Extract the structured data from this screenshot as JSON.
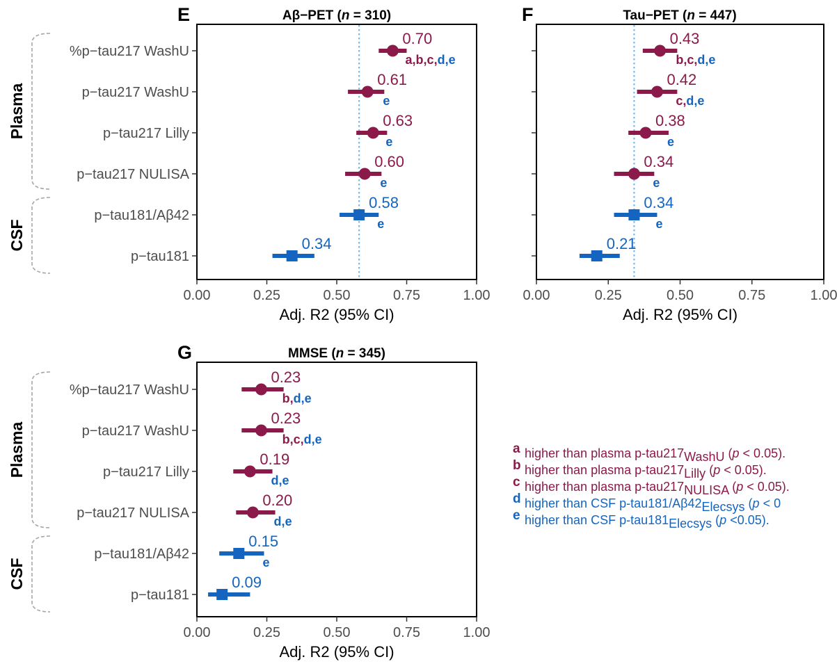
{
  "colors": {
    "plasma": "#8b1a4a",
    "csf": "#1565c0",
    "refline": "#7ab7e8",
    "bracket": "#a6a6a6"
  },
  "group_labels": [
    "Plasma",
    "CSF"
  ],
  "legend": [
    {
      "key": "a",
      "text": "higher than plasma p-tau217",
      "sub": "WashU",
      "p": "(p < 0.05).",
      "group": "plasma"
    },
    {
      "key": "b",
      "text": "higher than plasma p-tau217",
      "sub": "Lilly",
      "p": "(p < 0.05).",
      "group": "plasma"
    },
    {
      "key": "c",
      "text": "higher than plasma p-tau217",
      "sub": "NULISA",
      "p": "(p < 0.05).",
      "group": "plasma"
    },
    {
      "key": "d",
      "text": "higher than CSF p-tau181/Aβ42",
      "sub": "Elecsys",
      "p": "(p < 0",
      "group": "csf"
    },
    {
      "key": "e",
      "text": "higher than CSF p-tau181",
      "sub": "Elecsys",
      "p": "(p <0.05).",
      "group": "csf"
    }
  ],
  "chart_data": [
    {
      "type": "scatter",
      "panel": "E",
      "title": "Aβ−PET (n = 310)",
      "xlabel": "Adj. R2 (95% CI)",
      "xlim": [
        0,
        1
      ],
      "xticks": [
        "0.00",
        "0.25",
        "0.50",
        "0.75",
        "1.00"
      ],
      "ref_line": 0.58,
      "show_row_labels": true,
      "categories": [
        "%p−tau217 WashU",
        "p−tau217 WashU",
        "p−tau217 Lilly",
        "p−tau217 NULISA",
        "p−tau181/Aβ42",
        "p−tau181"
      ],
      "values": [
        0.7,
        0.61,
        0.63,
        0.6,
        0.58,
        0.34
      ],
      "ci_low": [
        0.65,
        0.54,
        0.57,
        0.53,
        0.51,
        0.27
      ],
      "ci_high": [
        0.75,
        0.67,
        0.68,
        0.66,
        0.65,
        0.42
      ],
      "value_labels": [
        "0.70",
        "0.61",
        "0.63",
        "0.60",
        "0.58",
        "0.34"
      ],
      "groups": [
        "plasma",
        "plasma",
        "plasma",
        "plasma",
        "csf",
        "csf"
      ],
      "significance": [
        "a,b,c,d,e",
        "e",
        "e",
        "e",
        "e",
        ""
      ]
    },
    {
      "type": "scatter",
      "panel": "F",
      "title": "Tau−PET (n = 447)",
      "xlabel": "Adj. R2 (95% CI)",
      "xlim": [
        0,
        1
      ],
      "xticks": [
        "0.00",
        "0.25",
        "0.50",
        "0.75",
        "1.00"
      ],
      "ref_line": 0.34,
      "show_row_labels": false,
      "categories": [
        "%p−tau217 WashU",
        "p−tau217 WashU",
        "p−tau217 Lilly",
        "p−tau217 NULISA",
        "p−tau181/Aβ42",
        "p−tau181"
      ],
      "values": [
        0.43,
        0.42,
        0.38,
        0.34,
        0.34,
        0.21
      ],
      "ci_low": [
        0.37,
        0.35,
        0.32,
        0.27,
        0.27,
        0.15
      ],
      "ci_high": [
        0.49,
        0.49,
        0.46,
        0.41,
        0.42,
        0.29
      ],
      "value_labels": [
        "0.43",
        "0.42",
        "0.38",
        "0.34",
        "0.34",
        "0.21"
      ],
      "groups": [
        "plasma",
        "plasma",
        "plasma",
        "plasma",
        "csf",
        "csf"
      ],
      "significance": [
        "b,c,d,e",
        "c,d,e",
        "e",
        "e",
        "e",
        ""
      ]
    },
    {
      "type": "scatter",
      "panel": "G",
      "title": "MMSE (n = 345)",
      "xlabel": "Adj. R2 (95% CI)",
      "xlim": [
        0,
        1
      ],
      "xticks": [
        "0.00",
        "0.25",
        "0.50",
        "0.75",
        "1.00"
      ],
      "ref_line": null,
      "show_row_labels": true,
      "categories": [
        "%p−tau217 WashU",
        "p−tau217 WashU",
        "p−tau217 Lilly",
        "p−tau217 NULISA",
        "p−tau181/Aβ42",
        "p−tau181"
      ],
      "values": [
        0.23,
        0.23,
        0.19,
        0.2,
        0.15,
        0.09
      ],
      "ci_low": [
        0.16,
        0.16,
        0.13,
        0.14,
        0.08,
        0.04
      ],
      "ci_high": [
        0.31,
        0.31,
        0.27,
        0.28,
        0.24,
        0.19
      ],
      "value_labels": [
        "0.23",
        "0.23",
        "0.19",
        "0.20",
        "0.15",
        "0.09"
      ],
      "groups": [
        "plasma",
        "plasma",
        "plasma",
        "plasma",
        "csf",
        "csf"
      ],
      "significance": [
        "b,d,e",
        "b,c,d,e",
        "d,e",
        "d,e",
        "e",
        ""
      ]
    }
  ]
}
